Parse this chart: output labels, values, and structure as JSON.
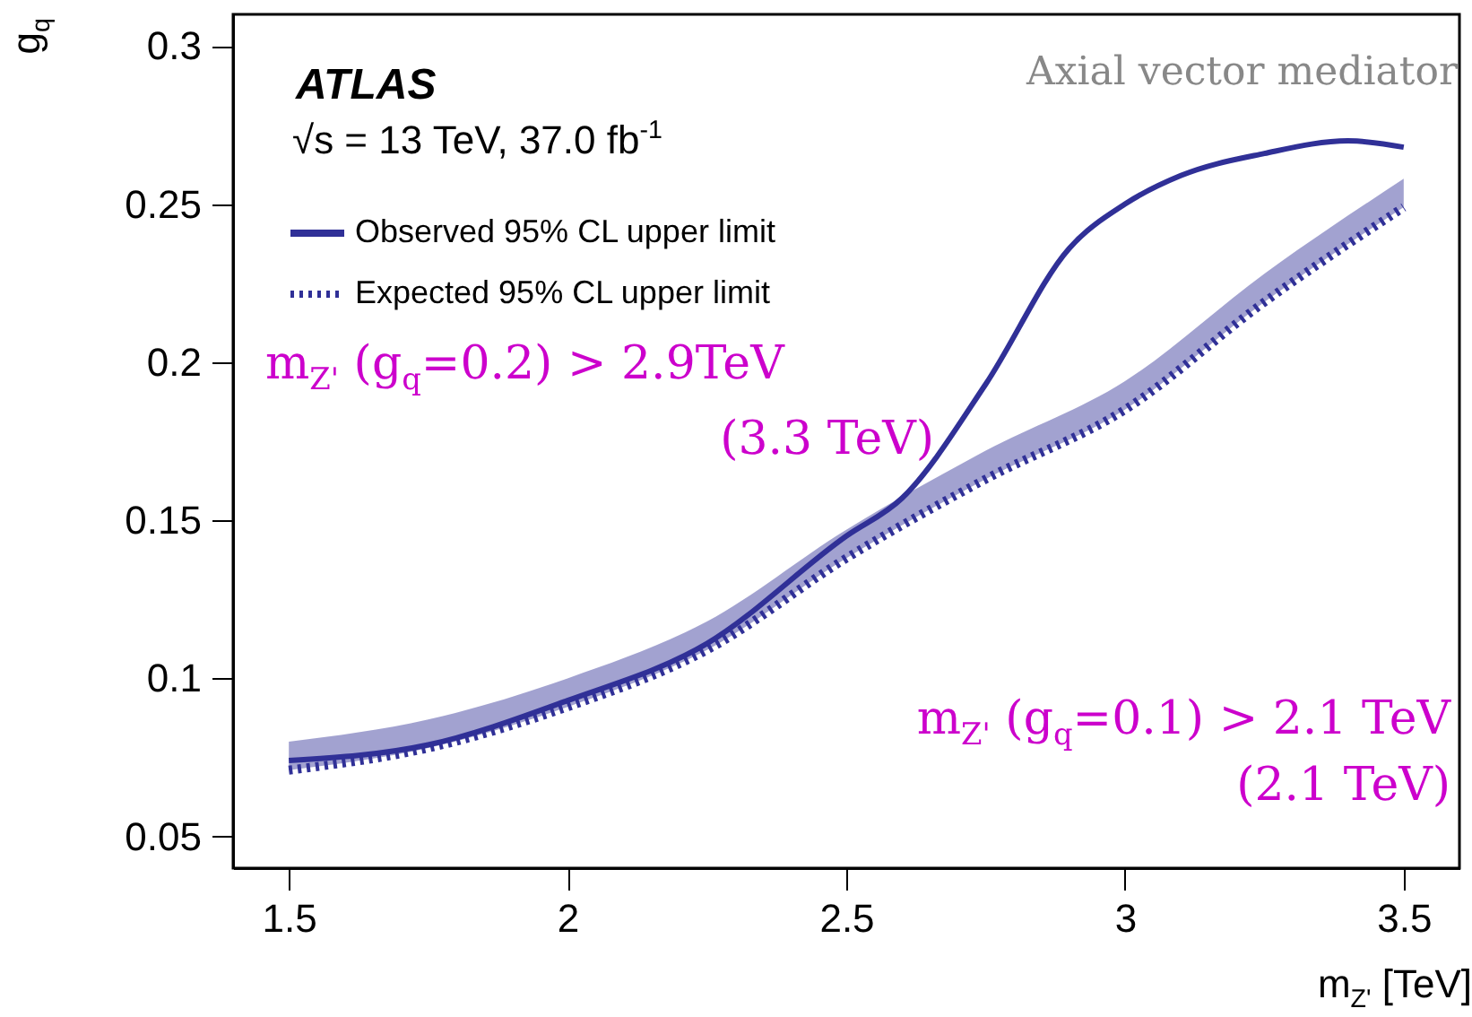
{
  "chart_data": {
    "type": "line",
    "xlabel": "m$_{Z'}$ [TeV]",
    "ylabel": "g$_{q}$",
    "xlim": [
      1.4,
      3.6
    ],
    "ylim": [
      0.04,
      0.31
    ],
    "xticks": [
      1.5,
      2,
      2.5,
      3,
      3.5
    ],
    "yticks": [
      0.05,
      0.1,
      0.15,
      0.2,
      0.25,
      0.3
    ],
    "grid": false,
    "legend": "top left",
    "series": [
      {
        "name": "Observed 95% CL upper limit",
        "color": "#303097",
        "line_style": "solid",
        "x": [
          1.5,
          1.75,
          2.0,
          2.25,
          2.5,
          2.6,
          2.75,
          2.9,
          3.0,
          3.1,
          3.25,
          3.4,
          3.5
        ],
        "values": [
          0.074,
          0.079,
          0.093,
          0.111,
          0.145,
          0.157,
          0.193,
          0.236,
          0.25,
          0.259,
          0.266,
          0.27,
          0.268
        ]
      },
      {
        "name": "Expected 95% CL upper limit",
        "color": "#303097",
        "line_style": "dotted",
        "x": [
          1.5,
          1.75,
          2.0,
          2.25,
          2.5,
          2.75,
          3.0,
          3.25,
          3.5
        ],
        "values": [
          0.071,
          0.078,
          0.091,
          0.109,
          0.138,
          0.163,
          0.185,
          0.219,
          0.249
        ],
        "lower": [
          0.071,
          0.078,
          0.091,
          0.109,
          0.138,
          0.163,
          0.185,
          0.219,
          0.249
        ],
        "upper": [
          0.08,
          0.087,
          0.1,
          0.118,
          0.147,
          0.172,
          0.194,
          0.228,
          0.258
        ]
      }
    ],
    "annotations": [
      "ATLAS",
      "√s = 13 TeV, 37.0 fb$^{-1}$",
      "Axial vector mediator",
      "m$_{Z'}$ (g$_{q}$=0.2) > 2.9TeV",
      "(3.3 TeV)",
      "m$_{Z'}$ (g$_{q}$=0.1) > 2.1 TeV",
      "(2.1 TeV)"
    ]
  }
}
